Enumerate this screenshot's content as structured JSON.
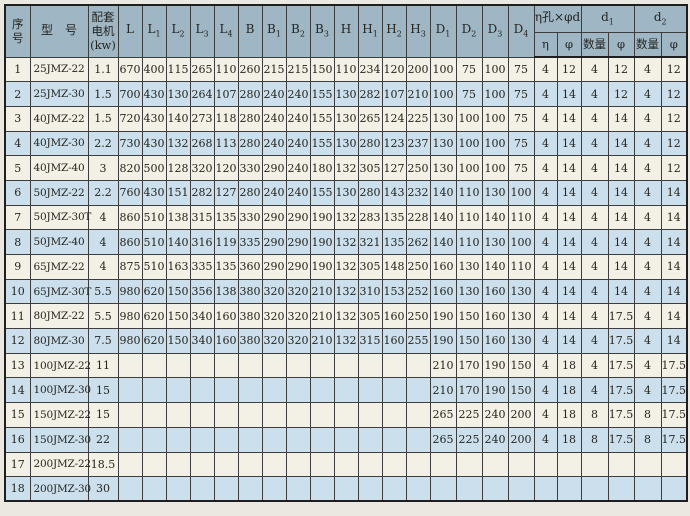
{
  "page": {
    "background": "#eae8e0"
  },
  "table": {
    "colors": {
      "header_bg": "#9fb7c4",
      "row_odd_bg": "#f3f0e5",
      "row_even_bg": "#cbe0ec",
      "grid_line": "#3d3d3d",
      "frame_line": "#1f1f1f",
      "text": "#26241f",
      "page_bg": "#eae8e0"
    },
    "header": {
      "serial": [
        "序",
        "号"
      ],
      "model": "型　号",
      "motor": [
        "配套",
        "电机",
        "(kw)"
      ],
      "dims": [
        {
          "b": "L",
          "s": ""
        },
        {
          "b": "L",
          "s": "1"
        },
        {
          "b": "L",
          "s": "2"
        },
        {
          "b": "L",
          "s": "3"
        },
        {
          "b": "L",
          "s": "4"
        },
        {
          "b": "B",
          "s": ""
        },
        {
          "b": "B",
          "s": "1"
        },
        {
          "b": "B",
          "s": "2"
        },
        {
          "b": "B",
          "s": "3"
        },
        {
          "b": "H",
          "s": ""
        },
        {
          "b": "H",
          "s": "1"
        },
        {
          "b": "H",
          "s": "2"
        },
        {
          "b": "H",
          "s": "3"
        },
        {
          "b": "D",
          "s": "1"
        },
        {
          "b": "D",
          "s": "2"
        },
        {
          "b": "D",
          "s": "3"
        },
        {
          "b": "D",
          "s": "4"
        }
      ],
      "groups": [
        {
          "b": "η孔×φd",
          "s": ""
        },
        {
          "b": "d",
          "s": "1"
        },
        {
          "b": "d",
          "s": "2"
        }
      ],
      "sub_labels": [
        "η",
        "φ",
        "数量",
        "φ",
        "数量",
        "φ"
      ]
    },
    "rows": [
      [
        "1",
        "25JMZ-22",
        "1.1",
        "670",
        "400",
        "115",
        "265",
        "110",
        "260",
        "215",
        "215",
        "150",
        "110",
        "234",
        "120",
        "200",
        "100",
        "75",
        "100",
        "75",
        "4",
        "12",
        "4",
        "12",
        "4",
        "12"
      ],
      [
        "2",
        "25JMZ-30",
        "1.5",
        "700",
        "430",
        "130",
        "264",
        "107",
        "280",
        "240",
        "240",
        "155",
        "130",
        "282",
        "107",
        "210",
        "100",
        "75",
        "100",
        "75",
        "4",
        "14",
        "4",
        "12",
        "4",
        "12"
      ],
      [
        "3",
        "40JMZ-22",
        "1.5",
        "720",
        "430",
        "140",
        "273",
        "118",
        "280",
        "240",
        "240",
        "155",
        "130",
        "265",
        "124",
        "225",
        "130",
        "100",
        "100",
        "75",
        "4",
        "14",
        "4",
        "14",
        "4",
        "12"
      ],
      [
        "4",
        "40JMZ-30",
        "2.2",
        "730",
        "430",
        "132",
        "268",
        "113",
        "280",
        "240",
        "240",
        "155",
        "130",
        "280",
        "123",
        "237",
        "130",
        "100",
        "100",
        "75",
        "4",
        "14",
        "4",
        "14",
        "4",
        "12"
      ],
      [
        "5",
        "40JMZ-40",
        "3",
        "820",
        "500",
        "128",
        "320",
        "120",
        "330",
        "290",
        "240",
        "180",
        "132",
        "305",
        "127",
        "250",
        "130",
        "100",
        "100",
        "75",
        "4",
        "14",
        "4",
        "14",
        "4",
        "12"
      ],
      [
        "6",
        "50JMZ-22",
        "2.2",
        "760",
        "430",
        "151",
        "282",
        "127",
        "280",
        "240",
        "240",
        "155",
        "130",
        "280",
        "143",
        "232",
        "140",
        "110",
        "130",
        "100",
        "4",
        "14",
        "4",
        "14",
        "4",
        "14"
      ],
      [
        "7",
        "50JMZ-30T",
        "4",
        "860",
        "510",
        "138",
        "315",
        "135",
        "330",
        "290",
        "290",
        "190",
        "132",
        "283",
        "135",
        "228",
        "140",
        "110",
        "140",
        "110",
        "4",
        "14",
        "4",
        "14",
        "4",
        "14"
      ],
      [
        "8",
        "50JMZ-40",
        "4",
        "860",
        "510",
        "140",
        "316",
        "119",
        "335",
        "290",
        "290",
        "190",
        "132",
        "321",
        "135",
        "262",
        "140",
        "110",
        "130",
        "100",
        "4",
        "14",
        "4",
        "14",
        "4",
        "14"
      ],
      [
        "9",
        "65JMZ-22",
        "4",
        "875",
        "510",
        "163",
        "335",
        "135",
        "360",
        "290",
        "290",
        "190",
        "132",
        "305",
        "148",
        "250",
        "160",
        "130",
        "140",
        "110",
        "4",
        "14",
        "4",
        "14",
        "4",
        "14"
      ],
      [
        "10",
        "65JMZ-30T",
        "5.5",
        "980",
        "620",
        "150",
        "356",
        "138",
        "380",
        "320",
        "320",
        "210",
        "132",
        "310",
        "153",
        "252",
        "160",
        "130",
        "160",
        "130",
        "4",
        "14",
        "4",
        "14",
        "4",
        "14"
      ],
      [
        "11",
        "80JMZ-22",
        "5.5",
        "980",
        "620",
        "150",
        "340",
        "160",
        "380",
        "320",
        "320",
        "210",
        "132",
        "305",
        "160",
        "250",
        "190",
        "150",
        "160",
        "130",
        "4",
        "14",
        "4",
        "17.5",
        "4",
        "14"
      ],
      [
        "12",
        "80JMZ-30",
        "7.5",
        "980",
        "620",
        "150",
        "340",
        "160",
        "380",
        "320",
        "320",
        "210",
        "132",
        "315",
        "160",
        "255",
        "190",
        "150",
        "160",
        "130",
        "4",
        "14",
        "4",
        "17.5",
        "4",
        "14"
      ],
      [
        "13",
        "100JMZ-22",
        "11",
        "",
        "",
        "",
        "",
        "",
        "",
        "",
        "",
        "",
        "",
        "",
        "",
        "",
        "210",
        "170",
        "190",
        "150",
        "4",
        "18",
        "4",
        "17.5",
        "4",
        "17.5"
      ],
      [
        "14",
        "100JMZ-30",
        "15",
        "",
        "",
        "",
        "",
        "",
        "",
        "",
        "",
        "",
        "",
        "",
        "",
        "",
        "210",
        "170",
        "190",
        "150",
        "4",
        "18",
        "4",
        "17.5",
        "4",
        "17.5"
      ],
      [
        "15",
        "150JMZ-22",
        "15",
        "",
        "",
        "",
        "",
        "",
        "",
        "",
        "",
        "",
        "",
        "",
        "",
        "",
        "265",
        "225",
        "240",
        "200",
        "4",
        "18",
        "8",
        "17.5",
        "8",
        "17.5"
      ],
      [
        "16",
        "150JMZ-30",
        "22",
        "",
        "",
        "",
        "",
        "",
        "",
        "",
        "",
        "",
        "",
        "",
        "",
        "",
        "265",
        "225",
        "240",
        "200",
        "4",
        "18",
        "8",
        "17.5",
        "8",
        "17.5"
      ],
      [
        "17",
        "200JMZ-22",
        "18.5",
        "",
        "",
        "",
        "",
        "",
        "",
        "",
        "",
        "",
        "",
        "",
        "",
        "",
        "",
        "",
        "",
        "",
        "",
        "",
        "",
        "",
        "",
        ""
      ],
      [
        "18",
        "200JMZ-30",
        "30",
        "",
        "",
        "",
        "",
        "",
        "",
        "",
        "",
        "",
        "",
        "",
        "",
        "",
        "",
        "",
        "",
        "",
        "",
        "",
        "",
        "",
        "",
        ""
      ]
    ]
  }
}
